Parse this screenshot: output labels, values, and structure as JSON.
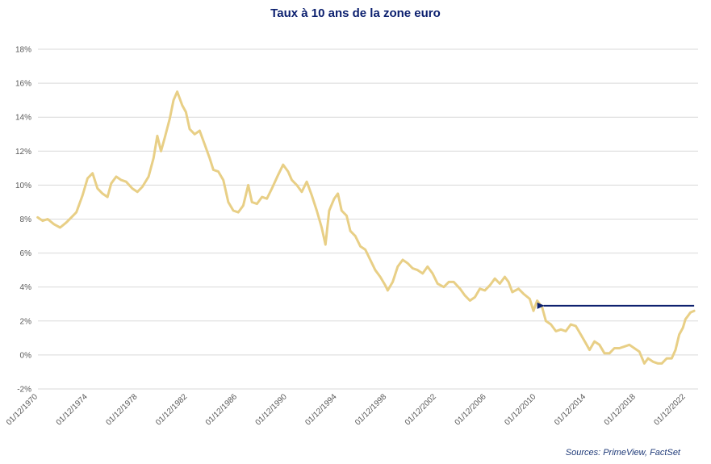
{
  "chart_data": {
    "type": "line",
    "title": "Taux à 10 ans de la zone euro",
    "source": "Sources: PrimeView, FactSet",
    "xlabel": "",
    "ylabel": "",
    "ylim": [
      -2,
      18
    ],
    "xlim": [
      "01/12/1970",
      "01/12/2023"
    ],
    "y_ticks": [
      "-2%",
      "0%",
      "2%",
      "4%",
      "6%",
      "8%",
      "10%",
      "12%",
      "14%",
      "16%",
      "18%"
    ],
    "x_ticks": [
      "01/12/1970",
      "01/12/1974",
      "01/12/1978",
      "01/12/1982",
      "01/12/1986",
      "01/12/1990",
      "01/12/1994",
      "01/12/1998",
      "01/12/2002",
      "01/12/2006",
      "01/12/2010",
      "01/12/2014",
      "01/12/2018",
      "01/12/2022"
    ],
    "grid": true,
    "colors": {
      "line": "#e8cf86",
      "arrow": "#0b1f6e",
      "grid": "#d9d9d9",
      "title": "#0b1f6e"
    },
    "annotations": [
      {
        "type": "arrow",
        "from": [
          "2023.6",
          2.9
        ],
        "to": [
          "2011.0",
          2.9
        ]
      }
    ],
    "series": [
      {
        "values": [
          [
            "1970.9",
            8.1
          ],
          [
            "1971.3",
            7.9
          ],
          [
            "1971.7",
            8.0
          ],
          [
            "1972.2",
            7.7
          ],
          [
            "1972.7",
            7.5
          ],
          [
            "1973.2",
            7.8
          ],
          [
            "1973.6",
            8.1
          ],
          [
            "1974.0",
            8.4
          ],
          [
            "1974.5",
            9.4
          ],
          [
            "1974.9",
            10.4
          ],
          [
            "1975.3",
            10.7
          ],
          [
            "1975.7",
            9.8
          ],
          [
            "1976.1",
            9.5
          ],
          [
            "1976.5",
            9.3
          ],
          [
            "1976.8",
            10.1
          ],
          [
            "1977.2",
            10.5
          ],
          [
            "1977.6",
            10.3
          ],
          [
            "1978.0",
            10.2
          ],
          [
            "1978.5",
            9.8
          ],
          [
            "1978.9",
            9.6
          ],
          [
            "1979.3",
            9.9
          ],
          [
            "1979.8",
            10.5
          ],
          [
            "1980.2",
            11.6
          ],
          [
            "1980.5",
            12.9
          ],
          [
            "1980.8",
            12.0
          ],
          [
            "1981.1",
            12.8
          ],
          [
            "1981.5",
            13.9
          ],
          [
            "1981.8",
            15.0
          ],
          [
            "1982.1",
            15.5
          ],
          [
            "1982.5",
            14.7
          ],
          [
            "1982.8",
            14.3
          ],
          [
            "1983.1",
            13.3
          ],
          [
            "1983.5",
            13.0
          ],
          [
            "1983.9",
            13.2
          ],
          [
            "1984.3",
            12.4
          ],
          [
            "1984.7",
            11.6
          ],
          [
            "1985.0",
            10.9
          ],
          [
            "1985.4",
            10.8
          ],
          [
            "1985.8",
            10.3
          ],
          [
            "1986.2",
            9.0
          ],
          [
            "1986.6",
            8.5
          ],
          [
            "1987.0",
            8.4
          ],
          [
            "1987.4",
            8.8
          ],
          [
            "1987.8",
            10.0
          ],
          [
            "1988.1",
            9.0
          ],
          [
            "1988.5",
            8.9
          ],
          [
            "1988.9",
            9.3
          ],
          [
            "1989.3",
            9.2
          ],
          [
            "1989.7",
            9.8
          ],
          [
            "1990.2",
            10.6
          ],
          [
            "1990.6",
            11.2
          ],
          [
            "1991.0",
            10.8
          ],
          [
            "1991.3",
            10.3
          ],
          [
            "1991.7",
            10.0
          ],
          [
            "1992.1",
            9.6
          ],
          [
            "1992.5",
            10.2
          ],
          [
            "1992.9",
            9.4
          ],
          [
            "1993.3",
            8.5
          ],
          [
            "1993.7",
            7.5
          ],
          [
            "1994.0",
            6.5
          ],
          [
            "1994.3",
            8.5
          ],
          [
            "1994.7",
            9.2
          ],
          [
            "1995.0",
            9.5
          ],
          [
            "1995.3",
            8.5
          ],
          [
            "1995.7",
            8.2
          ],
          [
            "1996.0",
            7.3
          ],
          [
            "1996.4",
            7.0
          ],
          [
            "1996.8",
            6.4
          ],
          [
            "1997.2",
            6.2
          ],
          [
            "1997.6",
            5.6
          ],
          [
            "1998.0",
            5.0
          ],
          [
            "1998.4",
            4.6
          ],
          [
            "1998.8",
            4.1
          ],
          [
            "1999.0",
            3.8
          ],
          [
            "1999.4",
            4.3
          ],
          [
            "1999.8",
            5.2
          ],
          [
            "2000.2",
            5.6
          ],
          [
            "2000.6",
            5.4
          ],
          [
            "2001.0",
            5.1
          ],
          [
            "2001.4",
            5.0
          ],
          [
            "2001.8",
            4.8
          ],
          [
            "2002.2",
            5.2
          ],
          [
            "2002.6",
            4.8
          ],
          [
            "2003.0",
            4.2
          ],
          [
            "2003.5",
            4.0
          ],
          [
            "2003.9",
            4.3
          ],
          [
            "2004.3",
            4.3
          ],
          [
            "2004.8",
            3.9
          ],
          [
            "2005.2",
            3.5
          ],
          [
            "2005.6",
            3.2
          ],
          [
            "2006.0",
            3.4
          ],
          [
            "2006.4",
            3.9
          ],
          [
            "2006.8",
            3.8
          ],
          [
            "2007.2",
            4.1
          ],
          [
            "2007.6",
            4.5
          ],
          [
            "2008.0",
            4.2
          ],
          [
            "2008.4",
            4.6
          ],
          [
            "2008.7",
            4.3
          ],
          [
            "2009.0",
            3.7
          ],
          [
            "2009.5",
            3.9
          ],
          [
            "2009.9",
            3.6
          ],
          [
            "2010.4",
            3.3
          ],
          [
            "2010.7",
            2.6
          ],
          [
            "2011.0",
            3.2
          ],
          [
            "2011.4",
            2.8
          ],
          [
            "2011.7",
            2.0
          ],
          [
            "2012.1",
            1.8
          ],
          [
            "2012.5",
            1.4
          ],
          [
            "2012.9",
            1.5
          ],
          [
            "2013.3",
            1.4
          ],
          [
            "2013.7",
            1.8
          ],
          [
            "2014.1",
            1.7
          ],
          [
            "2014.5",
            1.2
          ],
          [
            "2014.9",
            0.7
          ],
          [
            "2015.2",
            0.3
          ],
          [
            "2015.6",
            0.8
          ],
          [
            "2016.0",
            0.6
          ],
          [
            "2016.4",
            0.1
          ],
          [
            "2016.8",
            0.1
          ],
          [
            "2017.2",
            0.4
          ],
          [
            "2017.6",
            0.4
          ],
          [
            "2018.0",
            0.5
          ],
          [
            "2018.4",
            0.6
          ],
          [
            "2018.8",
            0.4
          ],
          [
            "2019.2",
            0.2
          ],
          [
            "2019.6",
            -0.5
          ],
          [
            "2019.9",
            -0.2
          ],
          [
            "2020.3",
            -0.4
          ],
          [
            "2020.7",
            -0.5
          ],
          [
            "2021.0",
            -0.5
          ],
          [
            "2021.4",
            -0.2
          ],
          [
            "2021.8",
            -0.2
          ],
          [
            "2022.1",
            0.3
          ],
          [
            "2022.4",
            1.2
          ],
          [
            "2022.7",
            1.6
          ],
          [
            "2022.9",
            2.1
          ],
          [
            "2023.1",
            2.3
          ],
          [
            "2023.3",
            2.5
          ],
          [
            "2023.6",
            2.6
          ]
        ]
      }
    ]
  }
}
